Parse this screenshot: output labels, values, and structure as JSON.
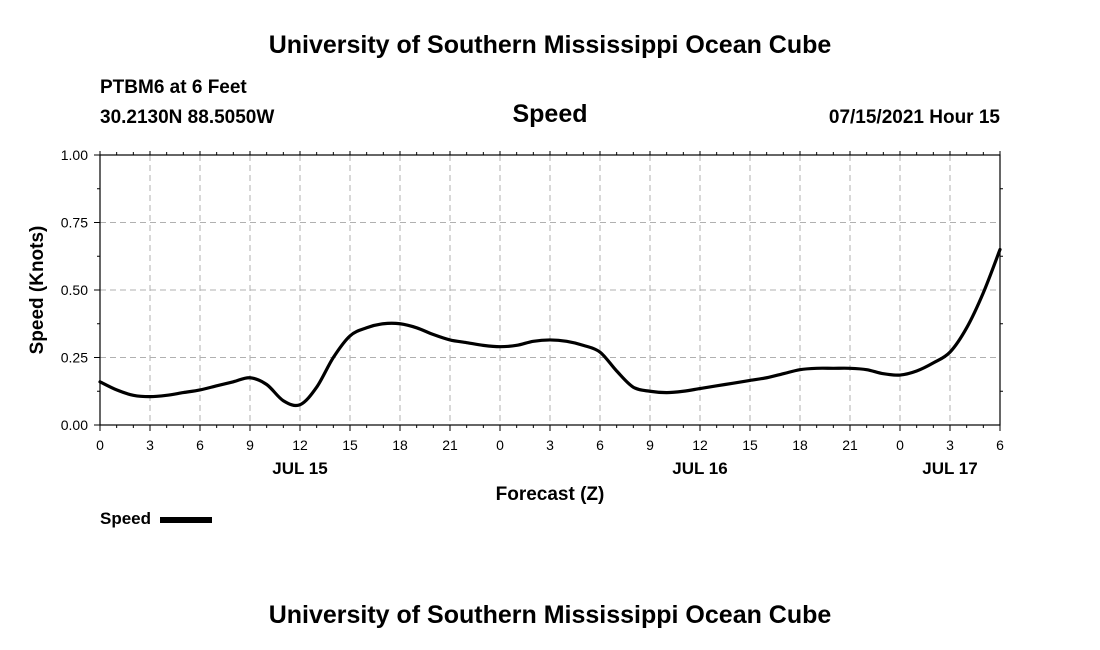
{
  "header": {
    "title_top": "University of Southern Mississippi Ocean Cube",
    "title_bottom": "University of Southern Mississippi Ocean Cube",
    "station": "PTBM6 at 6 Feet",
    "coords": "30.2130N  88.5050W",
    "timestamp": "07/15/2021 Hour 15"
  },
  "legend": {
    "label": "Speed"
  },
  "colors": {
    "line": "#000000",
    "grid": "#b0b0b0"
  },
  "chart_data": {
    "type": "line",
    "title": "Speed",
    "xlabel": "Forecast (Z)",
    "ylabel": "Speed (Knots)",
    "xlim": [
      0,
      54
    ],
    "ylim": [
      0,
      1
    ],
    "grid": true,
    "legend_position": "bottom-left",
    "x_ticks": [
      {
        "x": 0,
        "label": "0"
      },
      {
        "x": 3,
        "label": "3"
      },
      {
        "x": 6,
        "label": "6"
      },
      {
        "x": 9,
        "label": "9"
      },
      {
        "x": 12,
        "label": "12"
      },
      {
        "x": 15,
        "label": "15"
      },
      {
        "x": 18,
        "label": "18"
      },
      {
        "x": 21,
        "label": "21"
      },
      {
        "x": 24,
        "label": "0"
      },
      {
        "x": 27,
        "label": "3"
      },
      {
        "x": 30,
        "label": "6"
      },
      {
        "x": 33,
        "label": "9"
      },
      {
        "x": 36,
        "label": "12"
      },
      {
        "x": 39,
        "label": "15"
      },
      {
        "x": 42,
        "label": "18"
      },
      {
        "x": 45,
        "label": "21"
      },
      {
        "x": 48,
        "label": "0"
      },
      {
        "x": 51,
        "label": "3"
      },
      {
        "x": 54,
        "label": "6"
      }
    ],
    "date_labels": [
      {
        "x": 12,
        "label": "JUL 15"
      },
      {
        "x": 36,
        "label": "JUL 16"
      },
      {
        "x": 51,
        "label": "JUL 17"
      }
    ],
    "y_ticks": [
      {
        "y": 0,
        "label": "0.00"
      },
      {
        "y": 0.25,
        "label": "0.25"
      },
      {
        "y": 0.5,
        "label": "0.50"
      },
      {
        "y": 0.75,
        "label": "0.75"
      },
      {
        "y": 1,
        "label": "1.00"
      }
    ],
    "series": [
      {
        "name": "Speed",
        "x": [
          0,
          1,
          2,
          3,
          4,
          5,
          6,
          7,
          8,
          9,
          10,
          11,
          12,
          13,
          14,
          15,
          16,
          17,
          18,
          19,
          20,
          21,
          22,
          23,
          24,
          25,
          26,
          27,
          28,
          29,
          30,
          31,
          32,
          33,
          34,
          35,
          36,
          37,
          38,
          39,
          40,
          41,
          42,
          43,
          44,
          45,
          46,
          47,
          48,
          49,
          50,
          51,
          52,
          53,
          54
        ],
        "y": [
          0.16,
          0.13,
          0.11,
          0.105,
          0.11,
          0.12,
          0.13,
          0.145,
          0.16,
          0.175,
          0.15,
          0.09,
          0.075,
          0.14,
          0.25,
          0.33,
          0.36,
          0.375,
          0.375,
          0.36,
          0.335,
          0.315,
          0.305,
          0.295,
          0.29,
          0.295,
          0.31,
          0.315,
          0.31,
          0.295,
          0.27,
          0.2,
          0.14,
          0.125,
          0.12,
          0.125,
          0.135,
          0.145,
          0.155,
          0.165,
          0.175,
          0.19,
          0.205,
          0.21,
          0.21,
          0.21,
          0.205,
          0.19,
          0.185,
          0.2,
          0.23,
          0.27,
          0.36,
          0.49,
          0.65
        ]
      }
    ]
  }
}
